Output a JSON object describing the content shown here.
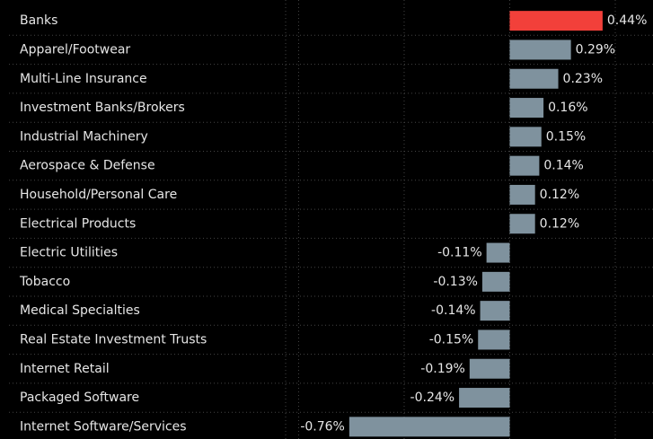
{
  "chart_data": {
    "type": "barh",
    "categories": [
      "Banks",
      "Apparel/Footwear",
      "Multi-Line Insurance",
      "Investment Banks/Brokers",
      "Industrial Machinery",
      "Aerospace & Defense",
      "Household/Personal Care",
      "Electrical Products",
      "Electric Utilities",
      "Tobacco",
      "Medical Specialties",
      "Real Estate Investment Trusts",
      "Internet Retail",
      "Packaged Software",
      "Internet Software/Services"
    ],
    "values": [
      0.44,
      0.29,
      0.23,
      0.16,
      0.15,
      0.14,
      0.12,
      0.12,
      -0.11,
      -0.13,
      -0.14,
      -0.15,
      -0.19,
      -0.24,
      -0.76
    ],
    "value_labels": [
      "0.44%",
      "0.29%",
      "0.23%",
      "0.16%",
      "0.15%",
      "0.14%",
      "0.12%",
      "0.12%",
      "-0.11%",
      "-0.13%",
      "-0.14%",
      "-0.15%",
      "-0.19%",
      "-0.24%",
      "-0.76%"
    ],
    "colors": [
      "#f2403a",
      "#7f929e",
      "#7f929e",
      "#7f929e",
      "#7f929e",
      "#7f929e",
      "#7f929e",
      "#7f929e",
      "#7f929e",
      "#7f929e",
      "#7f929e",
      "#7f929e",
      "#7f929e",
      "#7f929e",
      "#7f929e"
    ],
    "xlim": [
      -1.07,
      0.7
    ],
    "xticks": [
      -1,
      -0.5,
      0,
      0.5
    ],
    "grid": true
  }
}
